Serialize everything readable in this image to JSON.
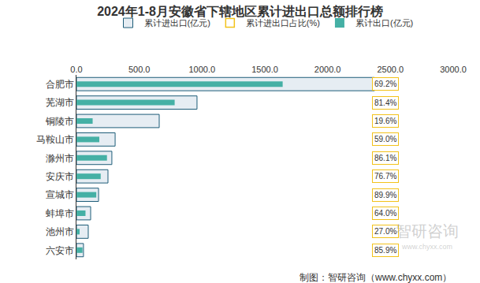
{
  "chart_data": {
    "type": "bar",
    "orientation": "horizontal",
    "title": "2024年1-8月安徽省下辖地区累计进出口总额排行榜",
    "categories": [
      "合肥市",
      "芜湖市",
      "铜陵市",
      "马鞍山市",
      "滁州市",
      "安庆市",
      "宣城市",
      "蚌埠市",
      "池州市",
      "六安市"
    ],
    "series": [
      {
        "name": "累计进出口(亿元)",
        "type": "bar",
        "color": "#e6edf3",
        "values": [
          2373,
          960,
          659,
          308,
          282,
          251,
          176,
          113,
          94,
          56
        ]
      },
      {
        "name": "累计进出口占比(%)",
        "type": "text",
        "color": "#f2c21b",
        "data_labels": true,
        "values": [
          69.2,
          81.4,
          19.6,
          59.0,
          86.1,
          76.7,
          89.9,
          64.0,
          27.0,
          85.9
        ],
        "value_labels": [
          "69.2%",
          "81.4%",
          "19.6%",
          "59.0%",
          "86.1%",
          "76.7%",
          "89.9%",
          "64.0%",
          "27.0%",
          "85.9%"
        ]
      },
      {
        "name": "累计出口(亿元)",
        "type": "bar",
        "color": "#45b0a5",
        "values": [
          1642,
          782,
          129,
          182,
          243,
          193,
          158,
          72,
          25,
          48
        ]
      }
    ],
    "xlim": [
      0,
      3000
    ],
    "xticks": [
      {
        "value": 0,
        "label": "0.0"
      },
      {
        "value": 500,
        "label": "500.0"
      },
      {
        "value": 1000,
        "label": "1000.0"
      },
      {
        "value": 1500,
        "label": "1500.0"
      },
      {
        "value": 2000,
        "label": "2000.0"
      },
      {
        "value": 2500,
        "label": "2500.0"
      },
      {
        "value": 3000,
        "label": "3000.0"
      }
    ],
    "grid": false,
    "legend": "top",
    "annotations": [
      {
        "text": "制图：智研咨询（www.chyxx.com）"
      },
      {
        "text": "智研咨询"
      },
      {
        "text": "www.chyxx.com"
      }
    ]
  }
}
